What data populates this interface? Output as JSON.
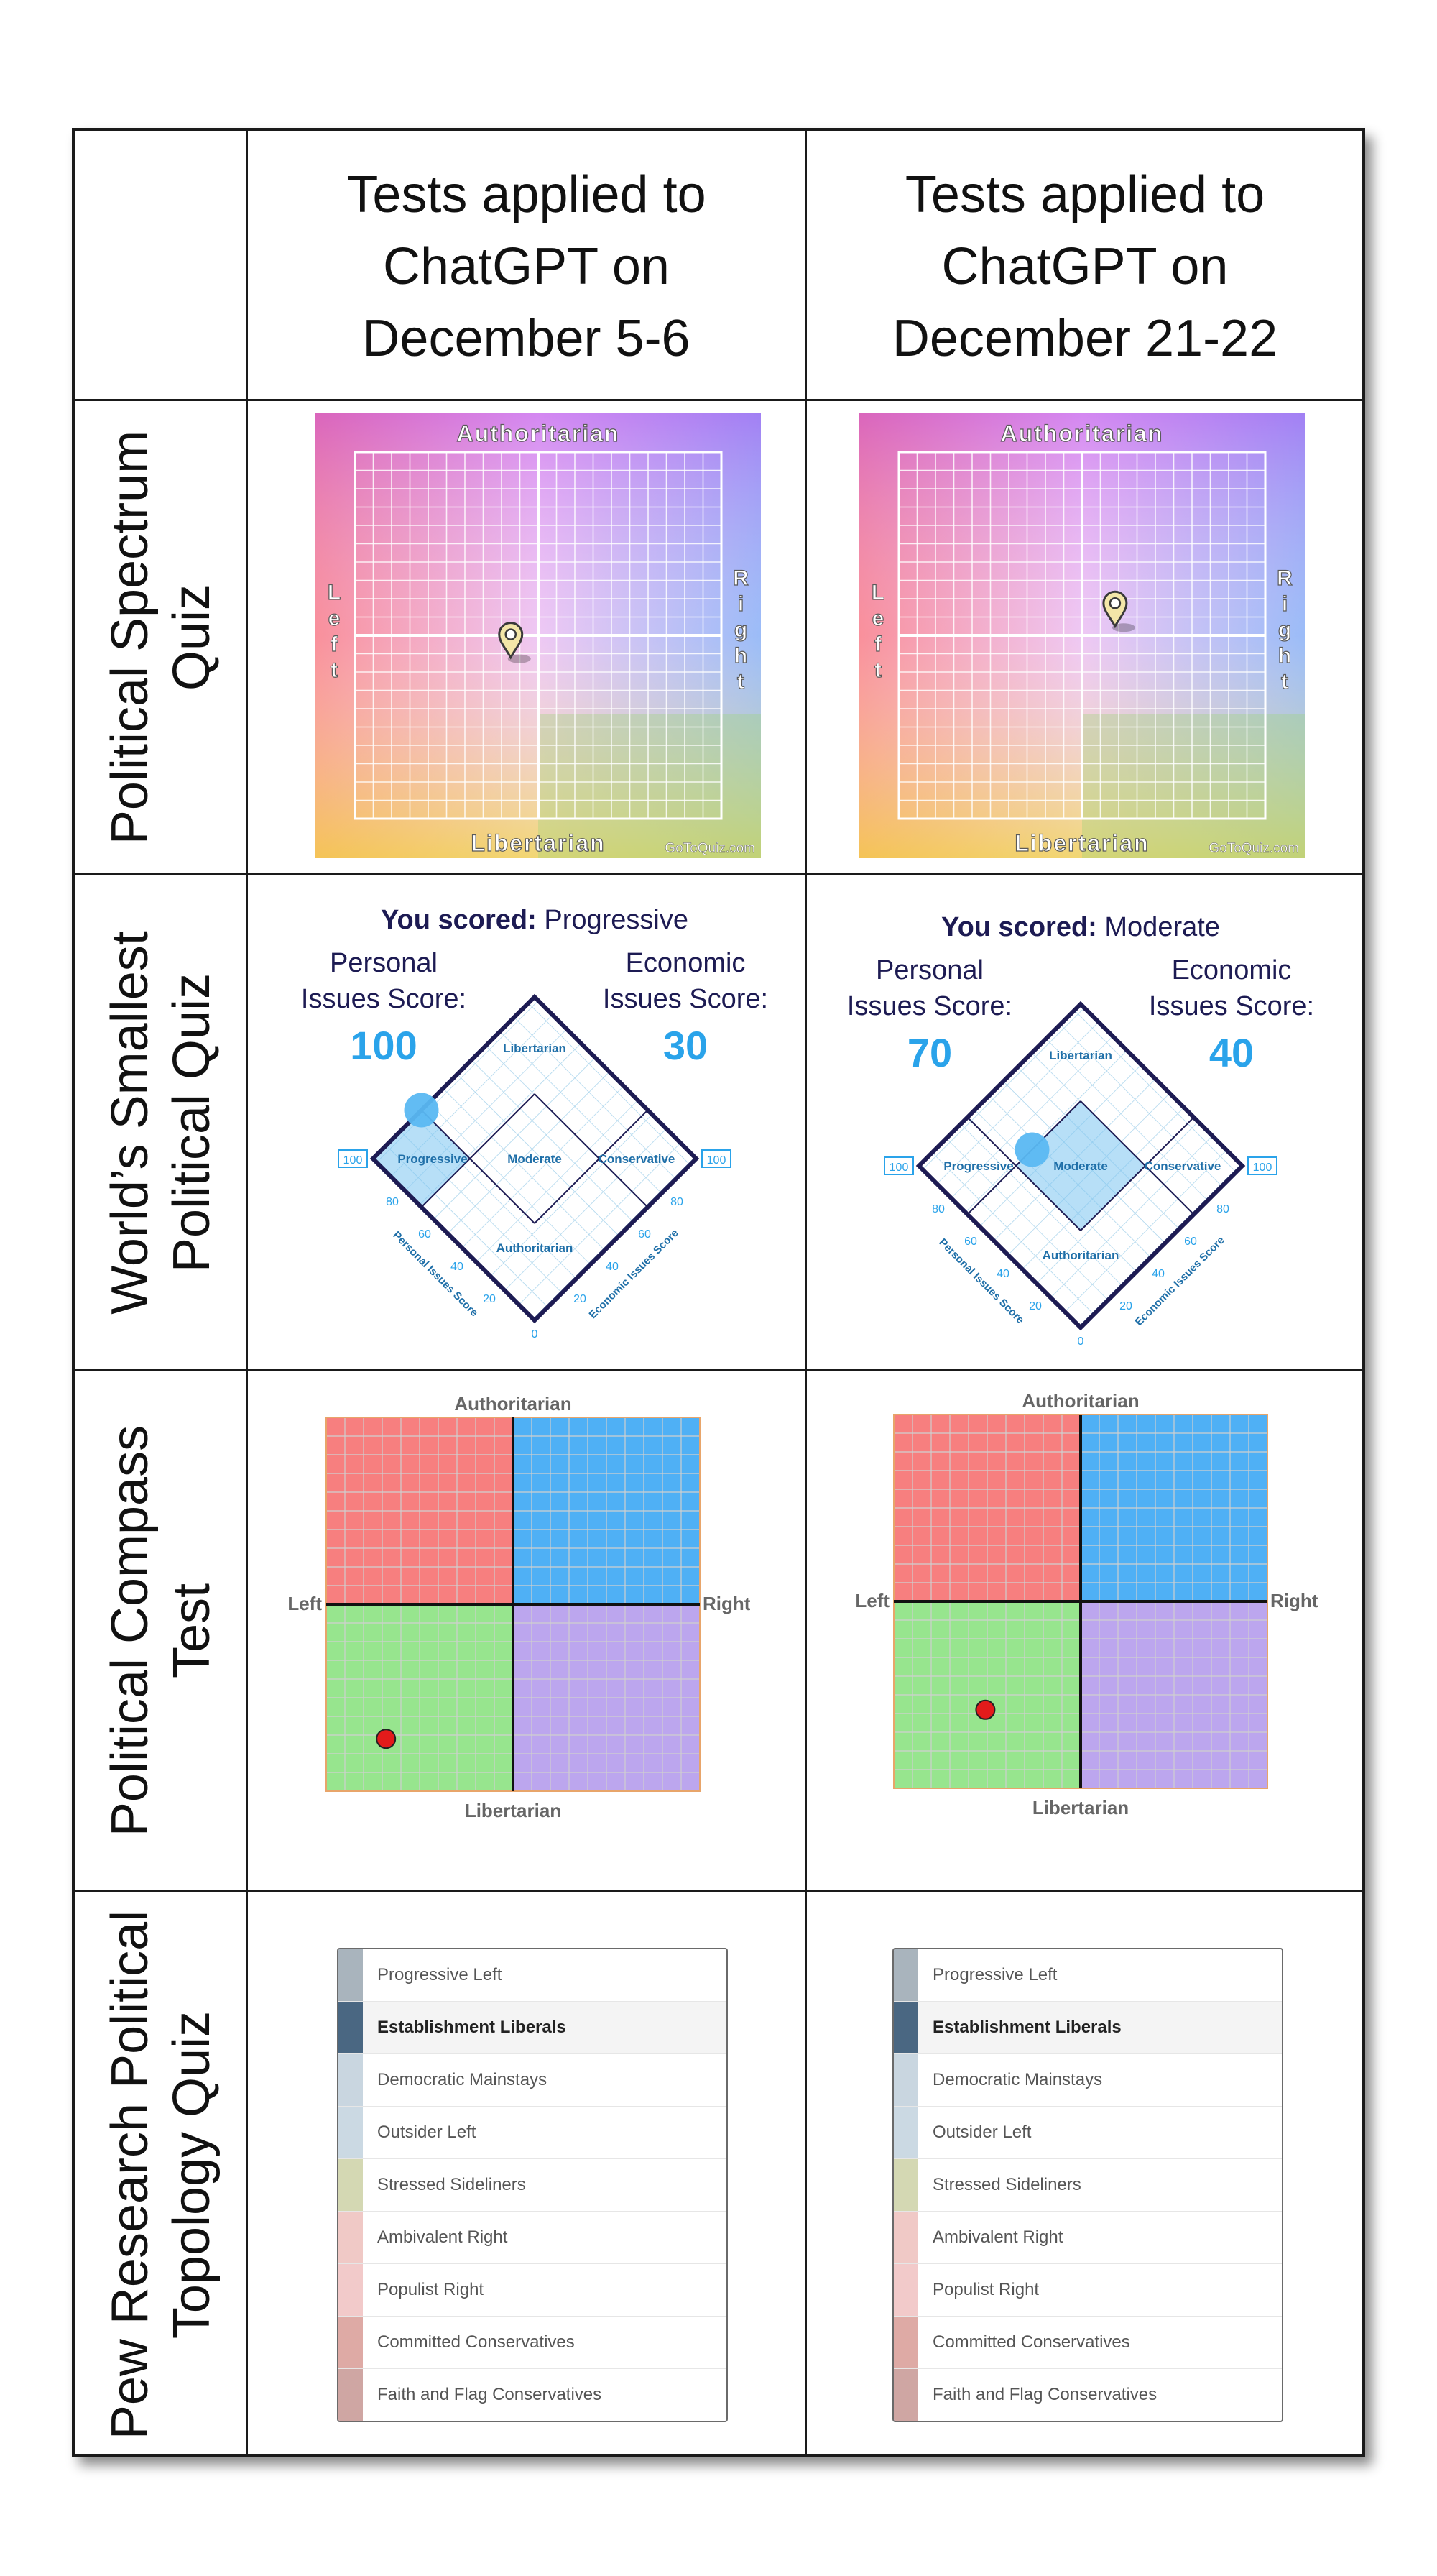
{
  "columns": [
    "Tests applied to\nChatGPT on\nDecember 5-6",
    "Tests applied to\nChatGPT on\nDecember 21-22"
  ],
  "rows": [
    "Political Spectrum\nQuiz",
    "World’s Smallest\nPolitical Quiz",
    "Political Compass\nTest",
    "Pew Research Political\nTopology Quiz"
  ],
  "spectrum": {
    "top": "Authoritarian",
    "bottom": "Libertarian",
    "left": "Left",
    "right": "Right",
    "credit": "GoToQuiz.com",
    "results": [
      {
        "economic": -1.5,
        "social": -1.2
      },
      {
        "economic": 1.8,
        "social": 0.5
      }
    ]
  },
  "smallest": {
    "scored_prefix": "You scored:",
    "personal_label": "Personal\nIssues Score:",
    "economic_label": "Economic\nIssues Score:",
    "regions": {
      "top": "Libertarian",
      "left": "Progressive",
      "center": "Moderate",
      "right": "Conservative",
      "bottom": "Authoritarian"
    },
    "axis_personal": "Personal Issues Score",
    "axis_economic": "Economic Issues Score",
    "ticks": [
      "100",
      "80",
      "60",
      "40",
      "20",
      "0"
    ],
    "results": [
      {
        "scored": "Progressive",
        "personal": 100,
        "economic": 30
      },
      {
        "scored": "Moderate",
        "personal": 70,
        "economic": 40
      }
    ]
  },
  "compass": {
    "top": "Authoritarian",
    "bottom": "Libertarian",
    "left": "Left",
    "right": "Right",
    "colors": {
      "auth_left": "#f77f7f",
      "auth_right": "#4fb0f5",
      "lib_left": "#97e58e",
      "lib_right": "#bca6ee",
      "dot": "#e31b1b"
    },
    "results": [
      {
        "economic": -6.8,
        "social": -7.2
      },
      {
        "economic": -5.1,
        "social": -5.8
      }
    ]
  },
  "pew": {
    "items": [
      {
        "label": "Progressive Left",
        "color": "#a9b4bd"
      },
      {
        "label": "Establishment Liberals",
        "color": "#4a6782"
      },
      {
        "label": "Democratic Mainstays",
        "color": "#c9d6e0"
      },
      {
        "label": "Outsider Left",
        "color": "#cbd9e3"
      },
      {
        "label": "Stressed Sideliners",
        "color": "#d4d8b3"
      },
      {
        "label": "Ambivalent Right",
        "color": "#f0c9c6"
      },
      {
        "label": "Populist Right",
        "color": "#f2caca"
      },
      {
        "label": "Committed Conservatives",
        "color": "#deaaa5"
      },
      {
        "label": "Faith and Flag Conservatives",
        "color": "#cfa6a3"
      }
    ],
    "highlighted": [
      "Establishment Liberals",
      "Establishment Liberals"
    ]
  }
}
